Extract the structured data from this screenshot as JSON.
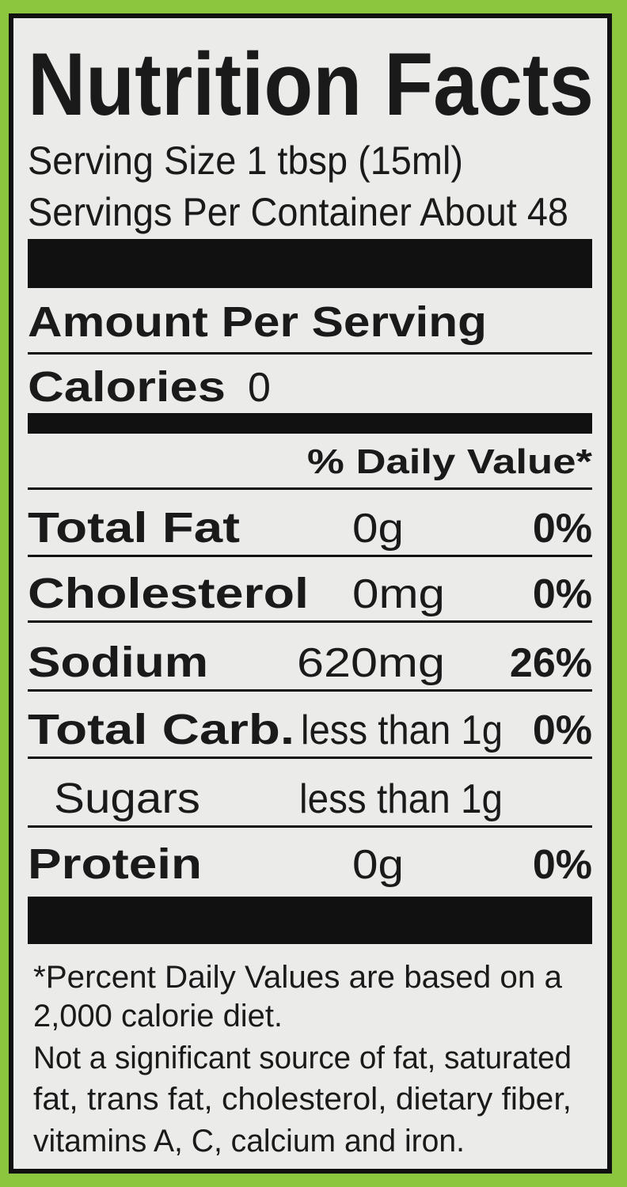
{
  "title": "Nutrition Facts",
  "serving": [
    "Serving Size 1 tbsp (15ml)",
    "Servings Per Container About 48"
  ],
  "amount_header": "Amount Per Serving",
  "calories": {
    "label": "Calories",
    "value": "0"
  },
  "dv_header": "% Daily Value*",
  "rows": [
    {
      "name": "Total Fat",
      "amount": "0g",
      "dv": "0%"
    },
    {
      "name": "Cholesterol",
      "amount": "0mg",
      "dv": "0%"
    },
    {
      "name": "Sodium",
      "amount": "620mg",
      "dv": "26%"
    },
    {
      "name": "Total Carb.",
      "amount": "less than 1g",
      "dv": "0%"
    },
    {
      "name": "Sugars",
      "amount": "less than 1g"
    },
    {
      "name": "Protein",
      "amount": "0g",
      "dv": "0%"
    }
  ],
  "footnote": [
    "*Percent Daily Values are based on a",
    "2,000 calorie diet.",
    "Not a significant source of fat, saturated",
    "fat, trans fat, cholesterol, dietary fiber,",
    "vitamins A, C, calcium and iron."
  ]
}
